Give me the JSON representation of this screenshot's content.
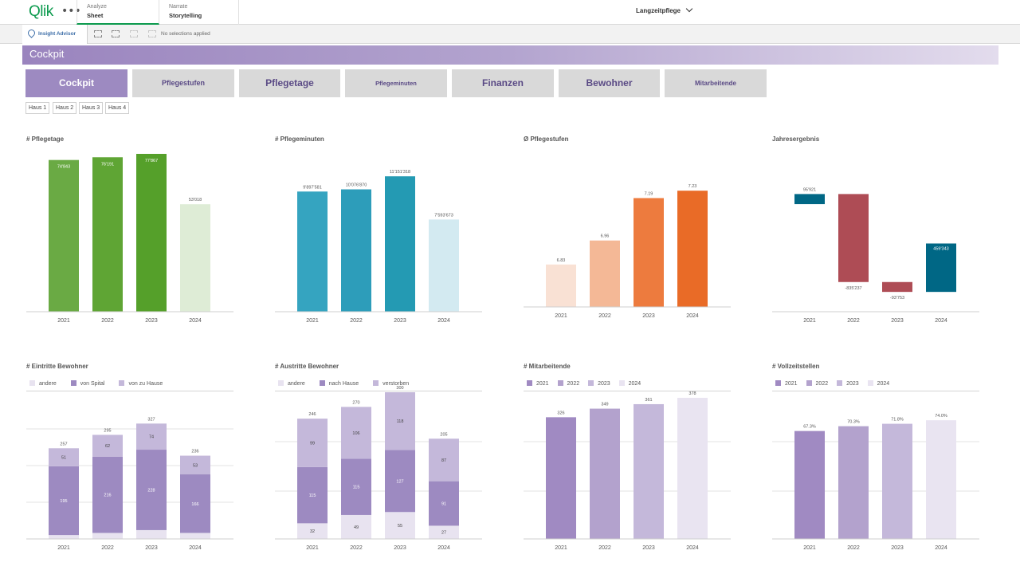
{
  "topbar": {
    "logo": "Qlik",
    "analyze": {
      "label": "Analyze",
      "sub": "Sheet"
    },
    "narrate": {
      "label": "Narrate",
      "sub": "Storytelling"
    },
    "app_name": "Langzeitpflege"
  },
  "selbar": {
    "insight_advisor": "Insight Advisor",
    "no_selections": "No selections applied"
  },
  "banner": {
    "title": "Cockpit"
  },
  "nav": [
    {
      "label": "Cockpit",
      "active": true
    },
    {
      "label": "Pflegestufen",
      "active": false
    },
    {
      "label": "Pflegetage",
      "active": false
    },
    {
      "label": "Pflegeminuten",
      "active": false
    },
    {
      "label": "Finanzen",
      "active": false
    },
    {
      "label": "Bewohner",
      "active": false
    },
    {
      "label": "Mitarbeitende",
      "active": false
    }
  ],
  "haus_filters": [
    "Haus 1",
    "Haus 2",
    "Haus 3",
    "Haus 4"
  ],
  "charts": {
    "pflegetage": {
      "title": "# Pflegetage"
    },
    "pflegeminuten": {
      "title": "# Pflegeminuten"
    },
    "pflegestufen": {
      "title": "Ø Pflegestufen"
    },
    "jahresergebnis": {
      "title": "Jahresergebnis"
    },
    "eintritte": {
      "title": "# Eintritte Bewohner",
      "legend": [
        "andere",
        "von Spital",
        "von zu Hause"
      ]
    },
    "austritte": {
      "title": "# Austritte Bewohner",
      "legend": [
        "andere",
        "nach Hause",
        "verstorben"
      ]
    },
    "mitarbeitende": {
      "title": "# Mitarbeitende",
      "legend": [
        "2021",
        "2022",
        "2023",
        "2024"
      ]
    },
    "vollzeitstellen": {
      "title": "# Vollzeitstellen",
      "legend": [
        "2021",
        "2022",
        "2023",
        "2024"
      ]
    }
  },
  "colors": {
    "accent": "#9d8ac1",
    "green": [
      "#6aaa44",
      "#5fa534",
      "#55a02a",
      "#deecd6"
    ],
    "teal": [
      "#35a4c0",
      "#2d9dba",
      "#249ab3",
      "#d3eaf1"
    ],
    "orange": [
      "#f9e1d4",
      "#f4b896",
      "#ed7b3e",
      "#e96b27"
    ],
    "positive": "#006785",
    "negative": "#ae4c55",
    "purple": [
      "#a08ac2",
      "#b3a2cd",
      "#c4b8da",
      "#e9e4f1"
    ],
    "stack_eintritte": [
      "#e8e3f0",
      "#9d8ac1",
      "#c4b8da"
    ],
    "stack_austritte": [
      "#e8e3f0",
      "#9d8ac1",
      "#c4b8da"
    ]
  },
  "chart_data": [
    {
      "id": "pflegetage",
      "type": "bar",
      "title": "# Pflegetage",
      "categories": [
        "2021",
        "2022",
        "2023",
        "2024"
      ],
      "values": [
        74843,
        76191,
        77867,
        53018
      ],
      "labels": [
        "74'843",
        "76'191",
        "77'867",
        "53'018"
      ],
      "ylim": [
        0,
        77867
      ]
    },
    {
      "id": "pflegeminuten",
      "type": "bar",
      "title": "# Pflegeminuten",
      "categories": [
        "2021",
        "2022",
        "2023",
        "2024"
      ],
      "values": [
        9897581,
        10076870,
        11151318,
        7593673
      ],
      "labels": [
        "9'897'581",
        "10'076'870",
        "11'151'318",
        "7'593'673"
      ],
      "ylim": [
        0,
        13000000
      ]
    },
    {
      "id": "pflegestufen",
      "type": "bar",
      "title": "Ø Pflegestufen",
      "categories": [
        "2021",
        "2022",
        "2023",
        "2024"
      ],
      "values": [
        6.83,
        6.96,
        7.19,
        7.23
      ],
      "labels": [
        "6.83",
        "6.96",
        "7.19",
        "7.23"
      ],
      "ylim": [
        6.6,
        7.3
      ]
    },
    {
      "id": "jahresergebnis",
      "type": "bar",
      "title": "Jahresergebnis",
      "categories": [
        "2021",
        "2022",
        "2023",
        "2024"
      ],
      "values": [
        95921,
        -835237,
        -93753,
        459343
      ],
      "labels": [
        "95'921",
        "-835'237",
        "-93'753",
        "459'343"
      ],
      "ylim": [
        -900000,
        500000
      ]
    },
    {
      "id": "eintritte",
      "type": "bar",
      "stacked": true,
      "title": "# Eintritte Bewohner",
      "categories": [
        "2021",
        "2022",
        "2023",
        "2024"
      ],
      "series": [
        {
          "name": "andere",
          "values": [
            11,
            17,
            25,
            17
          ]
        },
        {
          "name": "von Spital",
          "values": [
            195,
            216,
            228,
            166
          ]
        },
        {
          "name": "von zu Hause",
          "values": [
            51,
            62,
            74,
            53
          ]
        }
      ],
      "totals": [
        257,
        295,
        327,
        236
      ],
      "ylim": [
        0,
        400
      ]
    },
    {
      "id": "austritte",
      "type": "bar",
      "stacked": true,
      "title": "# Austritte Bewohner",
      "categories": [
        "2021",
        "2022",
        "2023",
        "2024"
      ],
      "series": [
        {
          "name": "andere",
          "values": [
            32,
            49,
            55,
            27
          ]
        },
        {
          "name": "nach Hause",
          "values": [
            115,
            115,
            127,
            91
          ]
        },
        {
          "name": "verstorben",
          "values": [
            99,
            106,
            118,
            87
          ]
        }
      ],
      "totals": [
        246,
        270,
        300,
        205
      ],
      "ylim": [
        0,
        300
      ]
    },
    {
      "id": "mitarbeitende",
      "type": "bar",
      "title": "# Mitarbeitende",
      "categories": [
        "2021",
        "2022",
        "2023",
        "2024"
      ],
      "values": [
        326,
        349,
        361,
        378
      ],
      "labels": [
        "326",
        "349",
        "361",
        "378"
      ],
      "ylim": [
        0,
        378
      ]
    },
    {
      "id": "vollzeitstellen",
      "type": "bar",
      "title": "# Vollzeitstellen",
      "categories": [
        "2021",
        "2022",
        "2023",
        "2024"
      ],
      "values": [
        67.3,
        70.3,
        71.8,
        74.0
      ],
      "labels": [
        "67.3%",
        "70.3%",
        "71.8%",
        "74.0%"
      ],
      "ylim": [
        0,
        88
      ]
    }
  ]
}
